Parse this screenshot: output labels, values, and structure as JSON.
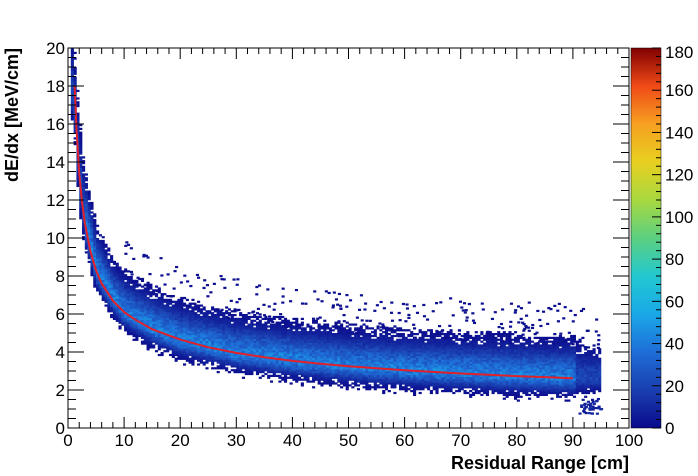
{
  "chart_data": {
    "type": "heatmap",
    "title": "",
    "xlabel": "Residual Range [cm]",
    "ylabel": "dE/dx [MeV/cm]",
    "xlim": [
      0,
      100
    ],
    "ylim": [
      0,
      20
    ],
    "x_ticks": [
      0,
      10,
      20,
      30,
      40,
      50,
      60,
      70,
      80,
      90,
      100
    ],
    "y_ticks": [
      0,
      2,
      4,
      6,
      8,
      10,
      12,
      14,
      16,
      18,
      20
    ],
    "colorbar": {
      "range": [
        0,
        180
      ],
      "ticks": [
        0,
        20,
        40,
        60,
        80,
        100,
        120,
        140,
        160,
        180
      ],
      "colormap": "rainbow"
    },
    "density_band": {
      "description_points": [
        {
          "x": 1,
          "y_center": 17.5,
          "width": 1.5
        },
        {
          "x": 2,
          "y_center": 13.0,
          "width": 1.6
        },
        {
          "x": 3,
          "y_center": 10.8,
          "width": 1.3
        },
        {
          "x": 5,
          "y_center": 8.3,
          "width": 1.1
        },
        {
          "x": 8,
          "y_center": 6.8,
          "width": 1.0
        },
        {
          "x": 10,
          "y_center": 6.1,
          "width": 1.0
        },
        {
          "x": 15,
          "y_center": 5.2,
          "width": 1.0
        },
        {
          "x": 20,
          "y_center": 4.6,
          "width": 1.0
        },
        {
          "x": 30,
          "y_center": 3.9,
          "width": 1.0
        },
        {
          "x": 40,
          "y_center": 3.5,
          "width": 1.0
        },
        {
          "x": 50,
          "y_center": 3.2,
          "width": 1.0
        },
        {
          "x": 60,
          "y_center": 3.0,
          "width": 1.0
        },
        {
          "x": 70,
          "y_center": 2.85,
          "width": 1.0
        },
        {
          "x": 80,
          "y_center": 2.7,
          "width": 1.0
        },
        {
          "x": 90,
          "y_center": 2.6,
          "width": 1.0
        },
        {
          "x": 95,
          "y_center": 2.6,
          "width": 0.8
        }
      ],
      "peak_count": 40
    },
    "fit_curve": {
      "color": "#e0202a",
      "x": [
        1.2,
        1.5,
        2,
        2.5,
        3,
        4,
        5,
        6,
        8,
        10,
        12,
        15,
        20,
        25,
        30,
        35,
        40,
        45,
        50,
        55,
        60,
        65,
        70,
        75,
        80,
        85,
        90
      ],
      "y": [
        18.0,
        15.8,
        13.4,
        11.9,
        10.8,
        9.3,
        8.3,
        7.6,
        6.7,
        6.1,
        5.7,
        5.2,
        4.65,
        4.25,
        3.95,
        3.72,
        3.53,
        3.38,
        3.25,
        3.14,
        3.04,
        2.95,
        2.87,
        2.8,
        2.73,
        2.68,
        2.62
      ]
    }
  }
}
